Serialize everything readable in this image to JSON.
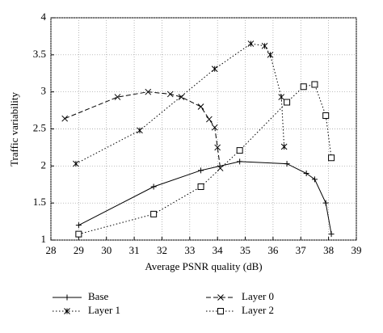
{
  "chart_data": {
    "type": "line",
    "x_label": "Average PSNR quality (dB)",
    "y_label": "Traffic variability",
    "xlim": [
      28,
      39
    ],
    "xticks": [
      28,
      29,
      30,
      31,
      32,
      33,
      34,
      35,
      36,
      37,
      38,
      39
    ],
    "ylim": [
      1,
      4
    ],
    "yticks": [
      1,
      1.5,
      2,
      2.5,
      3,
      3.5,
      4
    ],
    "grid": true,
    "series": [
      {
        "name": "Base",
        "color": "#000000",
        "line_style": "solid",
        "marker": "plus",
        "x": [
          29,
          31.7,
          33.4,
          34.8,
          36.5,
          37.2,
          37.5,
          37.9,
          38.1
        ],
        "values": [
          1.2,
          1.72,
          1.94,
          2.06,
          2.03,
          1.9,
          1.82,
          1.5,
          1.08
        ]
      },
      {
        "name": "Layer 0",
        "color": "#000000",
        "line_style": "dashed",
        "marker": "x",
        "x": [
          28.5,
          30.4,
          31.5,
          32.3,
          32.7,
          33.4,
          33.7,
          33.9,
          34.0,
          34.1
        ],
        "values": [
          2.64,
          2.93,
          3.0,
          2.97,
          2.93,
          2.8,
          2.63,
          2.52,
          2.25,
          1.97
        ]
      },
      {
        "name": "Layer 1",
        "color": "#000000",
        "line_style": "dotted",
        "marker": "asterisk",
        "x": [
          28.9,
          31.2,
          33.9,
          35.2,
          35.7,
          35.9,
          36.3,
          36.4
        ],
        "values": [
          2.03,
          2.48,
          3.31,
          3.65,
          3.62,
          3.5,
          2.93,
          2.26
        ]
      },
      {
        "name": "Layer 2",
        "color": "#000000",
        "line_style": "dotted",
        "marker": "square",
        "x": [
          29,
          31.7,
          33.4,
          34.8,
          36.5,
          37.1,
          37.5,
          37.9,
          38.1
        ],
        "values": [
          1.08,
          1.35,
          1.72,
          2.21,
          2.86,
          3.07,
          3.1,
          2.68,
          2.11
        ]
      }
    ]
  }
}
